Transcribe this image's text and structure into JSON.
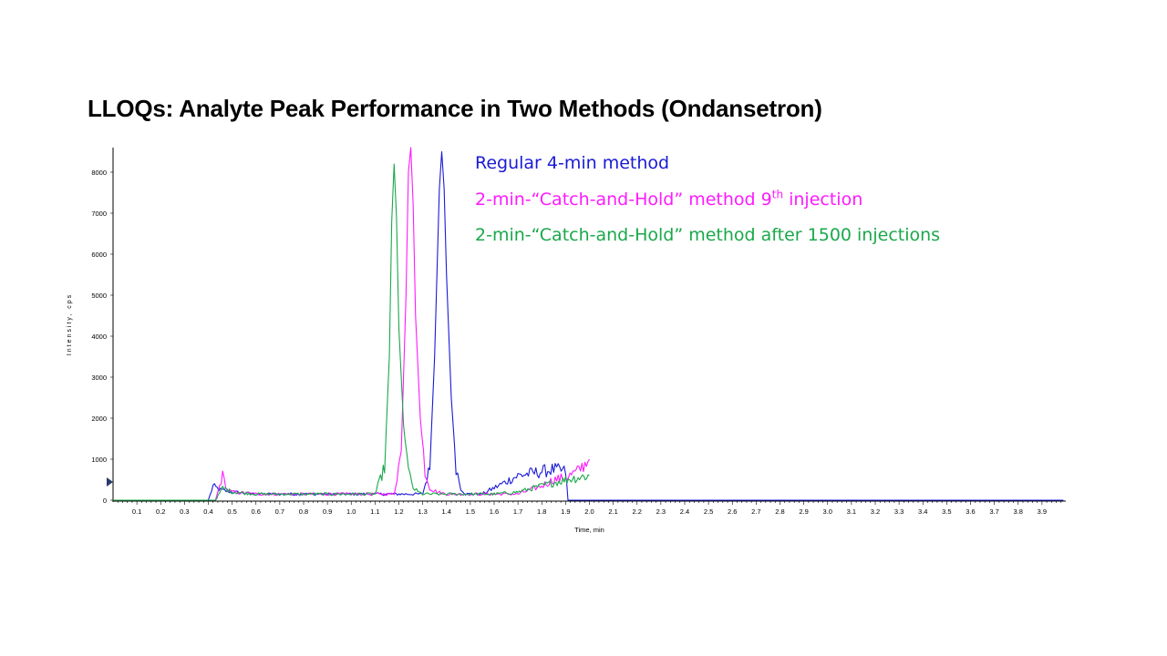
{
  "slide": {
    "title": "LLOQs: Analyte Peak Performance in Two Methods (Ondansetron)"
  },
  "colors": {
    "regular": "#1a1ad6",
    "injection9": "#ff1aff",
    "injection1500": "#1aa84a",
    "axis": "#000000"
  },
  "legend": [
    {
      "prefix": "Regular 4-min method",
      "sup": "",
      "suffix": "",
      "color": "#1a1ad6"
    },
    {
      "prefix": "2-min-“Catch-and-Hold” method 9",
      "sup": "th",
      "suffix": " injection",
      "color": "#ff1aff"
    },
    {
      "prefix": "2-min-“Catch-and-Hold” method after 1500 injections",
      "sup": "",
      "suffix": "",
      "color": "#1aa84a"
    }
  ],
  "chart_data": {
    "type": "line",
    "title": "",
    "xlabel": "Time, min",
    "ylabel": "Intensity, cps",
    "xlim": [
      0,
      4.0
    ],
    "ylim": [
      0,
      8600
    ],
    "x_ticks": [
      "0.1",
      "0.2",
      "0.3",
      "0.4",
      "0.5",
      "0.6",
      "0.7",
      "0.8",
      "0.9",
      "1.0",
      "1.1",
      "1.2",
      "1.3",
      "1.4",
      "1.5",
      "1.6",
      "1.7",
      "1.8",
      "1.9",
      "2.0",
      "2.1",
      "2.2",
      "2.3",
      "2.4",
      "2.5",
      "2.6",
      "2.7",
      "2.8",
      "2.9",
      "3.0",
      "3.1",
      "3.2",
      "3.3",
      "3.4",
      "3.5",
      "3.6",
      "3.7",
      "3.8",
      "3.9"
    ],
    "y_ticks": [
      "0",
      "1000",
      "2000",
      "3000",
      "4000",
      "5000",
      "6000",
      "7000",
      "8000"
    ],
    "grid": false,
    "legend_position": "top-right",
    "series": [
      {
        "name": "Regular 4-min method",
        "color": "#1a1ad6",
        "x": [
          0.0,
          0.4,
          0.42,
          0.45,
          0.5,
          0.6,
          0.7,
          0.8,
          0.9,
          1.0,
          1.1,
          1.2,
          1.3,
          1.33,
          1.35,
          1.37,
          1.38,
          1.39,
          1.4,
          1.42,
          1.44,
          1.46,
          1.48,
          1.5,
          1.55,
          1.6,
          1.65,
          1.7,
          1.75,
          1.8,
          1.85,
          1.9,
          1.91,
          1.92,
          2.0,
          2.5,
          3.0,
          3.5,
          3.99
        ],
        "y": [
          0,
          0,
          350,
          250,
          200,
          150,
          150,
          150,
          150,
          150,
          150,
          150,
          150,
          800,
          3500,
          7600,
          8500,
          7600,
          5500,
          2500,
          800,
          300,
          150,
          150,
          150,
          300,
          450,
          600,
          650,
          700,
          750,
          700,
          0,
          0,
          0,
          0,
          0,
          0,
          0
        ]
      },
      {
        "name": "2-min-“Catch-and-Hold” method 9th injection",
        "color": "#ff1aff",
        "x": [
          0.0,
          0.43,
          0.46,
          0.48,
          0.5,
          0.6,
          0.7,
          0.8,
          0.9,
          1.0,
          1.1,
          1.18,
          1.21,
          1.23,
          1.24,
          1.25,
          1.26,
          1.27,
          1.29,
          1.31,
          1.33,
          1.36,
          1.4,
          1.5,
          1.6,
          1.7,
          1.75,
          1.8,
          1.85,
          1.9,
          1.95,
          2.0
        ],
        "y": [
          0,
          0,
          600,
          250,
          200,
          150,
          150,
          150,
          150,
          150,
          150,
          150,
          1200,
          5000,
          8000,
          8600,
          7200,
          4500,
          2000,
          700,
          300,
          200,
          150,
          150,
          150,
          150,
          250,
          350,
          500,
          550,
          700,
          1000
        ]
      },
      {
        "name": "2-min-“Catch-and-Hold” method after 1500 injections",
        "color": "#1aa84a",
        "x": [
          0.0,
          0.43,
          0.46,
          0.5,
          0.6,
          0.7,
          0.8,
          0.9,
          1.0,
          1.1,
          1.14,
          1.16,
          1.17,
          1.18,
          1.19,
          1.2,
          1.22,
          1.24,
          1.26,
          1.28,
          1.3,
          1.35,
          1.4,
          1.5,
          1.6,
          1.7,
          1.8,
          1.9,
          2.0
        ],
        "y": [
          0,
          0,
          300,
          200,
          150,
          150,
          150,
          150,
          150,
          150,
          800,
          3500,
          6800,
          8200,
          6900,
          4200,
          1800,
          700,
          300,
          200,
          150,
          150,
          150,
          150,
          150,
          200,
          350,
          500,
          600
        ]
      }
    ]
  }
}
